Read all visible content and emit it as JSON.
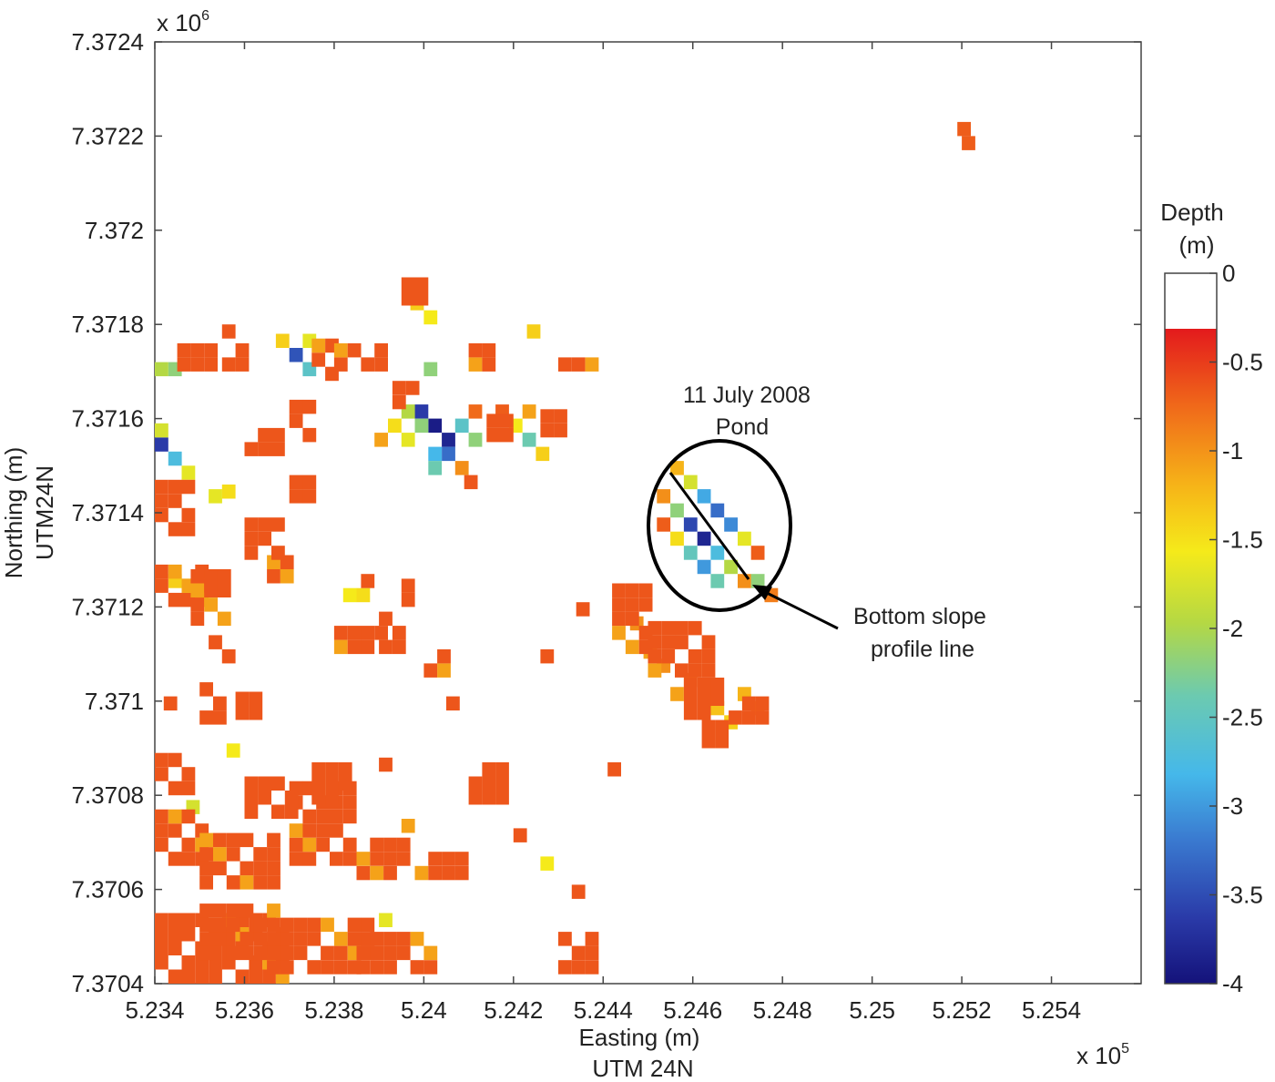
{
  "chart_data": {
    "type": "heatmap",
    "xlabel": "Easting (m)",
    "xlabel_sub": "UTM 24N",
    "ylabel": "Northing (m)",
    "ylabel_sub": "UTM24N",
    "x_multiplier": "x 10",
    "x_multiplier_exp": "5",
    "y_multiplier": "x 10",
    "y_multiplier_exp": "6",
    "xlim": [
      523400,
      525600
    ],
    "ylim": [
      7370400,
      7372400
    ],
    "x_ticks": [
      523400,
      523600,
      523800,
      524000,
      524200,
      524400,
      524600,
      524800,
      525000,
      525200,
      525400
    ],
    "x_tick_labels": [
      "5.234",
      "5.236",
      "5.238",
      "5.24",
      "5.242",
      "5.244",
      "5.246",
      "5.248",
      "5.25",
      "5.252",
      "5.254"
    ],
    "y_ticks": [
      7370400,
      7370600,
      7370800,
      7371000,
      7371200,
      7371400,
      7371600,
      7371800,
      7372000,
      7372200,
      7372400
    ],
    "y_tick_labels": [
      "7.3704",
      "7.3706",
      "7.3708",
      "7.371",
      "7.3712",
      "7.3714",
      "7.3716",
      "7.3718",
      "7.372",
      "7.3722",
      "7.3724"
    ],
    "grid": false,
    "colorbar": {
      "title": "Depth",
      "unit": "(m)",
      "range": [
        -4,
        0
      ],
      "ticks": [
        0,
        -0.5,
        -1,
        -1.5,
        -2,
        -2.5,
        -3,
        -3.5,
        -4
      ],
      "tick_labels": [
        "0",
        "-0.5",
        "-1",
        "-1.5",
        "-2",
        "-2.5",
        "-3",
        "-3.5",
        "-4"
      ],
      "colormap": "jet"
    },
    "cell_size_m": 30,
    "cells": [
      [
        524550,
        7371480,
        -1.0
      ],
      [
        524580,
        7371450,
        -1.6
      ],
      [
        524610,
        7371420,
        -2.8
      ],
      [
        524640,
        7371390,
        -3.2
      ],
      [
        524670,
        7371360,
        -3.0
      ],
      [
        524700,
        7371330,
        -1.5
      ],
      [
        524520,
        7371420,
        -0.8
      ],
      [
        524550,
        7371390,
        -2.0
      ],
      [
        524580,
        7371360,
        -3.5
      ],
      [
        524610,
        7371330,
        -3.8
      ],
      [
        524640,
        7371300,
        -2.6
      ],
      [
        524670,
        7371270,
        -1.8
      ],
      [
        524700,
        7371240,
        -0.8
      ],
      [
        524550,
        7371330,
        -1.3
      ],
      [
        524580,
        7371300,
        -2.3
      ],
      [
        524610,
        7371270,
        -2.9
      ],
      [
        524640,
        7371240,
        -2.2
      ],
      [
        524520,
        7371360,
        -0.5
      ],
      [
        524730,
        7371300,
        -0.5
      ],
      [
        524730,
        7371240,
        -2.0
      ],
      [
        524760,
        7371210,
        -0.7
      ],
      [
        524040,
        7371540,
        -3.8
      ],
      [
        524010,
        7371570,
        -3.9
      ],
      [
        523980,
        7371600,
        -3.6
      ],
      [
        524040,
        7371510,
        -3.2
      ],
      [
        524070,
        7371570,
        -2.4
      ],
      [
        524010,
        7371510,
        -2.7
      ],
      [
        523980,
        7371570,
        -2.0
      ],
      [
        523950,
        7371600,
        -1.8
      ],
      [
        523920,
        7371570,
        -1.3
      ],
      [
        524100,
        7371540,
        -2.0
      ],
      [
        523950,
        7371540,
        -1.5
      ],
      [
        524010,
        7371480,
        -2.2
      ],
      [
        524070,
        7371480,
        -0.8
      ],
      [
        524100,
        7371600,
        -0.6
      ],
      [
        523890,
        7371540,
        -0.9
      ],
      [
        524190,
        7371570,
        -1.4
      ],
      [
        524220,
        7371540,
        -2.2
      ],
      [
        524250,
        7371510,
        -1.2
      ],
      [
        524220,
        7371600,
        -0.9
      ],
      [
        524160,
        7371600,
        -0.5
      ],
      [
        523400,
        7371530,
        -3.6
      ],
      [
        523430,
        7371500,
        -2.6
      ],
      [
        523400,
        7371560,
        -1.6
      ],
      [
        523460,
        7371470,
        -1.5
      ],
      [
        523700,
        7371720,
        -3.4
      ],
      [
        523730,
        7371690,
        -2.4
      ],
      [
        523670,
        7371750,
        -1.2
      ],
      [
        523730,
        7371750,
        -1.5
      ],
      [
        523970,
        7371830,
        -1.2
      ],
      [
        524000,
        7371800,
        -1.4
      ],
      [
        524000,
        7371690,
        -2.0
      ],
      [
        523430,
        7371690,
        -2.0
      ],
      [
        523400,
        7371690,
        -1.8
      ],
      [
        523520,
        7371420,
        -1.5
      ],
      [
        523550,
        7371430,
        -1.3
      ],
      [
        523430,
        7371240,
        -1.2
      ],
      [
        523460,
        7371230,
        -1.5
      ],
      [
        523820,
        7371210,
        -1.4
      ],
      [
        523850,
        7371210,
        -1.3
      ],
      [
        524230,
        7371770,
        -1.2
      ],
      [
        523560,
        7370880,
        -1.4
      ],
      [
        524260,
        7370640,
        -1.4
      ],
      [
        523900,
        7370520,
        -1.5
      ],
      [
        523470,
        7370760,
        -1.6
      ],
      [
        524460,
        7371150,
        -0.8
      ],
      [
        524490,
        7371090,
        -0.9
      ],
      [
        524520,
        7371060,
        -0.8
      ],
      [
        524550,
        7371000,
        -0.9
      ],
      [
        524580,
        7371030,
        -0.7
      ],
      [
        524640,
        7370970,
        -1.1
      ],
      [
        524670,
        7370940,
        -1.2
      ],
      [
        524700,
        7371000,
        -1.0
      ],
      [
        524730,
        7370970,
        -0.8
      ],
      [
        525190,
        7372200,
        -0.5
      ],
      [
        525200,
        7372170,
        -0.5
      ]
    ],
    "shallow_cells_value": -0.45,
    "annotations": [
      {
        "text": "11 July 2008"
      },
      {
        "text": "Pond"
      },
      {
        "text": "Bottom slope"
      },
      {
        "text": "profile line"
      }
    ]
  }
}
